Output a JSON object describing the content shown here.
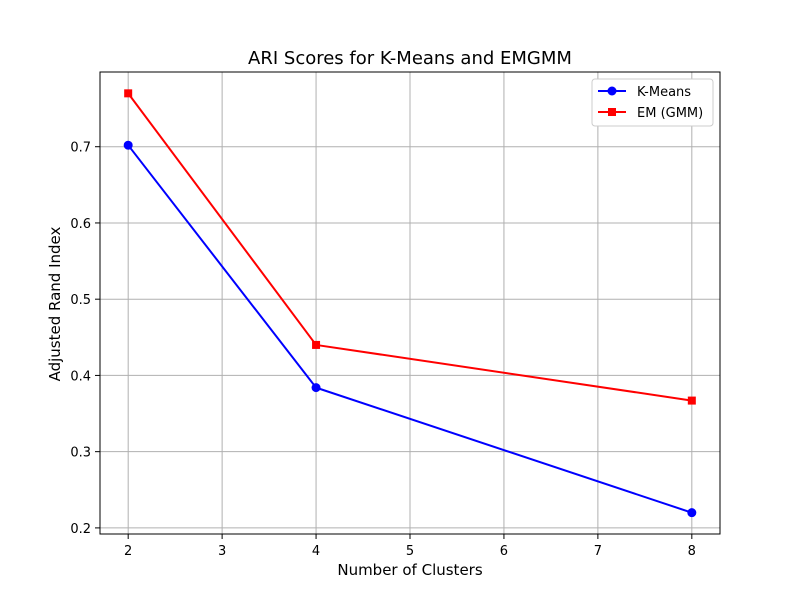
{
  "chart_data": {
    "type": "line",
    "title": "ARI Scores for K-Means and EMGMM",
    "xlabel": "Number of Clusters",
    "ylabel": "Adjusted Rand Index",
    "x": [
      2,
      4,
      8
    ],
    "series": [
      {
        "name": "K-Means",
        "values": [
          0.702,
          0.384,
          0.22
        ],
        "color": "#0000ff",
        "marker": "circle"
      },
      {
        "name": "EM (GMM)",
        "values": [
          0.77,
          0.44,
          0.367
        ],
        "color": "#ff0000",
        "marker": "square"
      }
    ],
    "xlim": [
      1.7,
      8.3
    ],
    "ylim": [
      0.192,
      0.798
    ],
    "xticks": [
      2,
      3,
      4,
      5,
      6,
      7,
      8
    ],
    "yticks": [
      0.2,
      0.3,
      0.4,
      0.5,
      0.6,
      0.7
    ],
    "xtick_labels": [
      "2",
      "3",
      "4",
      "5",
      "6",
      "7",
      "8"
    ],
    "ytick_labels": [
      "0.2",
      "0.3",
      "0.4",
      "0.5",
      "0.6",
      "0.7"
    ],
    "grid": true,
    "legend_position": "top-right"
  }
}
